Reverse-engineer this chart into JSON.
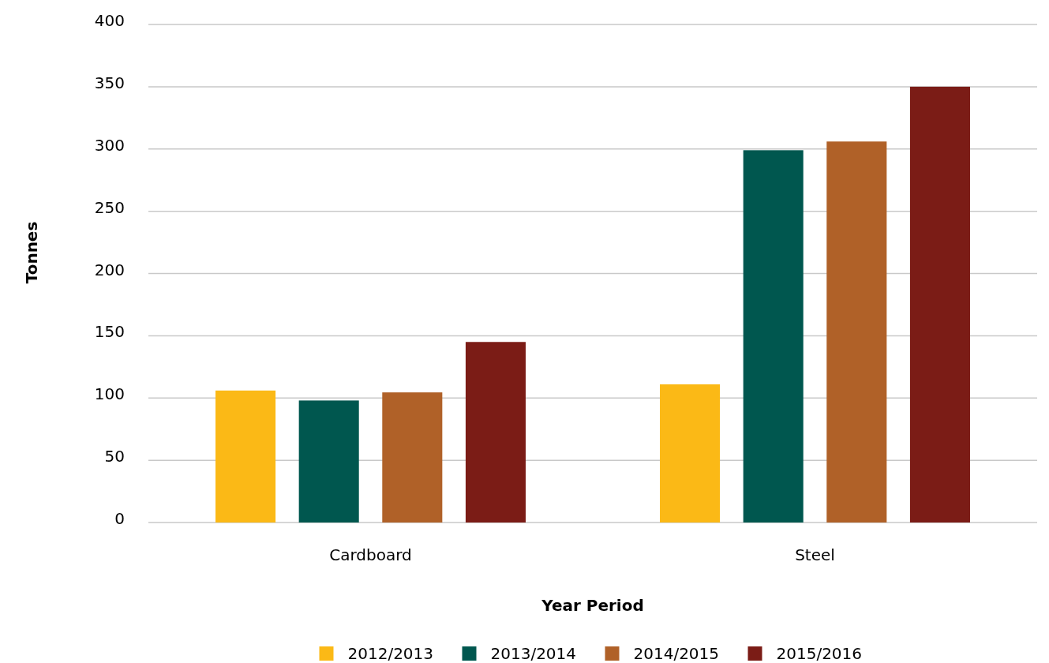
{
  "chart_data": {
    "type": "bar",
    "xlabel": "Year Period",
    "ylabel": "Tonnes",
    "categories": [
      "Cardboard",
      "Steel"
    ],
    "series": [
      {
        "name": "2012/2013",
        "color": "#fbb916",
        "values": [
          106,
          111
        ]
      },
      {
        "name": "2013/2014",
        "color": "#00574f",
        "values": [
          98,
          299
        ]
      },
      {
        "name": "2014/2015",
        "color": "#b06128",
        "values": [
          104.5,
          306
        ]
      },
      {
        "name": "2015/2016",
        "color": "#7b1c16",
        "values": [
          145,
          350
        ]
      }
    ],
    "ylim": [
      0,
      400
    ],
    "yticks": [
      0,
      50,
      100,
      150,
      200,
      250,
      300,
      350,
      400
    ],
    "grid": "y",
    "legend": "bottom"
  }
}
